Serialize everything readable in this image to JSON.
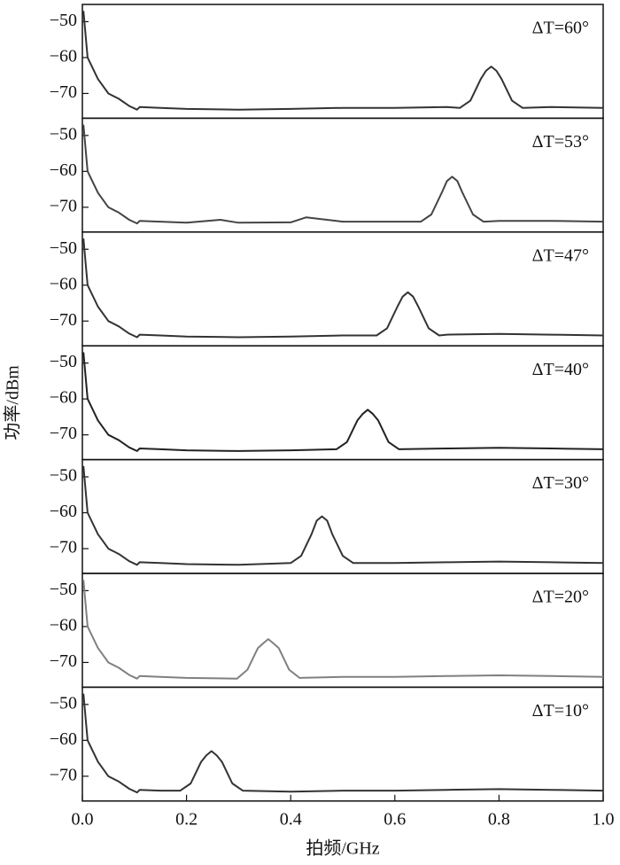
{
  "chart_data": [
    {
      "type": "line",
      "annotation": "ΔT=60°",
      "color": "#333333",
      "x": [
        0.002,
        0.01,
        0.03,
        0.05,
        0.07,
        0.09,
        0.105,
        0.11,
        0.15,
        0.2,
        0.3,
        0.4,
        0.5,
        0.6,
        0.7,
        0.725,
        0.745,
        0.765,
        0.775,
        0.785,
        0.795,
        0.805,
        0.825,
        0.845,
        0.9,
        1.0
      ],
      "values": [
        -47,
        -60,
        -66,
        -70,
        -71.5,
        -73.5,
        -74.5,
        -73.8,
        -74,
        -74.3,
        -74.5,
        -74.3,
        -74,
        -74,
        -73.8,
        -74,
        -72,
        -66,
        -63.7,
        -62.5,
        -63.7,
        -66,
        -72,
        -74,
        -73.8,
        -74
      ],
      "xlim": [
        0,
        1
      ],
      "ylim": [
        -76.9,
        -45.2
      ],
      "yticks": [
        {
          "value": -50,
          "label": "−50"
        },
        {
          "value": -60,
          "label": "−60"
        },
        {
          "value": -70,
          "label": "−70"
        }
      ]
    },
    {
      "type": "line",
      "annotation": "ΔT=53°",
      "color": "#444444",
      "x": [
        0.002,
        0.01,
        0.03,
        0.05,
        0.07,
        0.09,
        0.105,
        0.11,
        0.15,
        0.2,
        0.265,
        0.3,
        0.4,
        0.43,
        0.5,
        0.6,
        0.65,
        0.67,
        0.69,
        0.7,
        0.71,
        0.72,
        0.73,
        0.75,
        0.77,
        0.8,
        0.9,
        1.0
      ],
      "values": [
        -47,
        -60,
        -66,
        -70,
        -71.5,
        -73.5,
        -74.5,
        -73.8,
        -74,
        -74.3,
        -73.5,
        -74.3,
        -74.2,
        -72.8,
        -74,
        -74,
        -74,
        -72,
        -66,
        -62.7,
        -61.5,
        -62.7,
        -66,
        -72,
        -74,
        -73.8,
        -73.8,
        -74
      ],
      "xlim": [
        0,
        1
      ],
      "ylim": [
        -76.9,
        -45.2
      ],
      "yticks": [
        {
          "value": -50,
          "label": "−50"
        },
        {
          "value": -60,
          "label": "−60"
        },
        {
          "value": -70,
          "label": "−70"
        }
      ]
    },
    {
      "type": "line",
      "annotation": "ΔT=47°",
      "color": "#333333",
      "x": [
        0.002,
        0.01,
        0.03,
        0.05,
        0.07,
        0.09,
        0.105,
        0.11,
        0.15,
        0.2,
        0.3,
        0.4,
        0.5,
        0.565,
        0.585,
        0.605,
        0.615,
        0.625,
        0.635,
        0.645,
        0.665,
        0.685,
        0.7,
        0.8,
        0.9,
        1.0
      ],
      "values": [
        -47,
        -60,
        -66,
        -70,
        -71.5,
        -73.5,
        -74.5,
        -73.8,
        -74,
        -74.3,
        -74.5,
        -74.3,
        -74,
        -74,
        -72,
        -66,
        -63.2,
        -62,
        -63.2,
        -66,
        -72,
        -74,
        -73.8,
        -73.6,
        -73.8,
        -74
      ],
      "xlim": [
        0,
        1
      ],
      "ylim": [
        -76.9,
        -45.2
      ],
      "yticks": [
        {
          "value": -50,
          "label": "−50"
        },
        {
          "value": -60,
          "label": "−60"
        },
        {
          "value": -70,
          "label": "−70"
        }
      ]
    },
    {
      "type": "line",
      "annotation": "ΔT=40°",
      "color": "#222222",
      "ylabel": "功率/dBm",
      "x": [
        0.002,
        0.01,
        0.03,
        0.05,
        0.07,
        0.09,
        0.105,
        0.11,
        0.15,
        0.2,
        0.3,
        0.4,
        0.488,
        0.508,
        0.528,
        0.538,
        0.548,
        0.558,
        0.568,
        0.588,
        0.608,
        0.7,
        0.8,
        0.9,
        1.0
      ],
      "values": [
        -47,
        -60,
        -66,
        -70,
        -71.5,
        -73.5,
        -74.5,
        -73.8,
        -74,
        -74.3,
        -74.5,
        -74.3,
        -74,
        -72,
        -66,
        -64.2,
        -63,
        -64.2,
        -66,
        -72,
        -74,
        -73.8,
        -73.6,
        -73.8,
        -74
      ],
      "xlim": [
        0,
        1
      ],
      "ylim": [
        -76.9,
        -45.2
      ],
      "yticks": [
        {
          "value": -50,
          "label": "−50"
        },
        {
          "value": -60,
          "label": "−60"
        },
        {
          "value": -70,
          "label": "−70"
        }
      ]
    },
    {
      "type": "line",
      "annotation": "ΔT=30°",
      "color": "#333333",
      "x": [
        0.002,
        0.01,
        0.03,
        0.05,
        0.07,
        0.09,
        0.105,
        0.11,
        0.15,
        0.2,
        0.3,
        0.4,
        0.42,
        0.44,
        0.45,
        0.46,
        0.47,
        0.48,
        0.5,
        0.52,
        0.6,
        0.7,
        0.8,
        0.9,
        1.0
      ],
      "values": [
        -47,
        -60,
        -66,
        -70,
        -71.5,
        -73.5,
        -74.5,
        -73.8,
        -74,
        -74.3,
        -74.5,
        -74,
        -72,
        -66,
        -62.2,
        -61,
        -62.2,
        -66,
        -72,
        -74,
        -74,
        -73.8,
        -73.6,
        -73.8,
        -74
      ],
      "xlim": [
        0,
        1
      ],
      "ylim": [
        -76.9,
        -45.2
      ],
      "yticks": [
        {
          "value": -50,
          "label": "−50"
        },
        {
          "value": -60,
          "label": "−60"
        },
        {
          "value": -70,
          "label": "−70"
        }
      ]
    },
    {
      "type": "line",
      "annotation": "ΔT=20°",
      "color": "#808080",
      "x": [
        0.002,
        0.01,
        0.03,
        0.05,
        0.07,
        0.09,
        0.105,
        0.11,
        0.15,
        0.2,
        0.297,
        0.317,
        0.337,
        0.347,
        0.357,
        0.367,
        0.377,
        0.397,
        0.417,
        0.5,
        0.6,
        0.7,
        0.8,
        0.9,
        1.0
      ],
      "values": [
        -47,
        -60,
        -66,
        -70,
        -71.5,
        -73.5,
        -74.5,
        -73.8,
        -74,
        -74.3,
        -74.5,
        -72,
        -66,
        -64.7,
        -63.5,
        -64.7,
        -66,
        -72,
        -74.3,
        -74,
        -74,
        -73.8,
        -73.6,
        -73.8,
        -74
      ],
      "xlim": [
        0,
        1
      ],
      "ylim": [
        -76.9,
        -45.2
      ],
      "yticks": [
        {
          "value": -50,
          "label": "−50"
        },
        {
          "value": -60,
          "label": "−60"
        },
        {
          "value": -70,
          "label": "−70"
        }
      ]
    },
    {
      "type": "line",
      "annotation": "ΔT=10°",
      "color": "#333333",
      "xlabel": "拍频/GHz",
      "x": [
        0.002,
        0.01,
        0.03,
        0.05,
        0.07,
        0.09,
        0.105,
        0.11,
        0.15,
        0.188,
        0.208,
        0.228,
        0.238,
        0.248,
        0.258,
        0.268,
        0.288,
        0.308,
        0.4,
        0.5,
        0.6,
        0.7,
        0.8,
        0.9,
        1.0
      ],
      "values": [
        -47,
        -60,
        -66,
        -70,
        -71.5,
        -73.5,
        -74.5,
        -73.8,
        -74,
        -74,
        -72,
        -66,
        -64.2,
        -63,
        -64.2,
        -66,
        -72,
        -74,
        -74.3,
        -74,
        -74,
        -73.8,
        -73.6,
        -73.8,
        -74
      ],
      "xlim": [
        0,
        1
      ],
      "ylim": [
        -76.9,
        -45.2
      ],
      "xticks": [
        {
          "value": 0,
          "label": "0.0"
        },
        0.2,
        0.4,
        0.6,
        0.8,
        {
          "value": 1,
          "label": "1.0"
        }
      ],
      "yticks": [
        {
          "value": -50,
          "label": "−50"
        },
        {
          "value": -60,
          "label": "−60"
        },
        {
          "value": -70,
          "label": "−70"
        }
      ]
    }
  ]
}
